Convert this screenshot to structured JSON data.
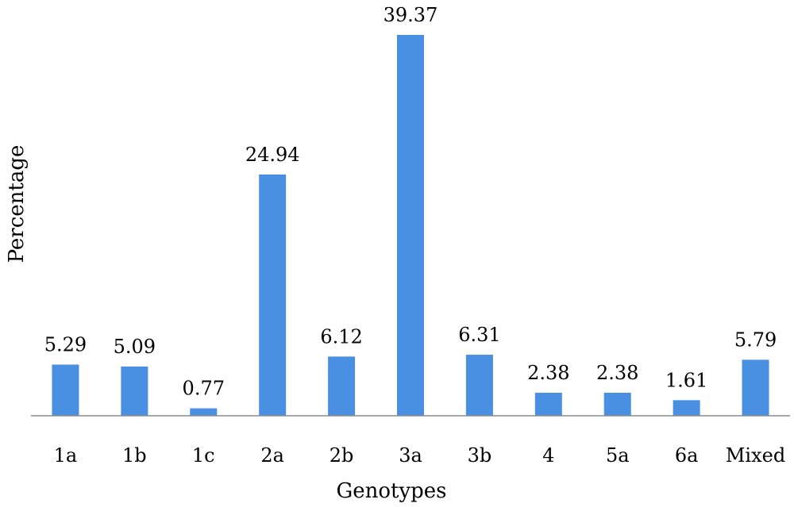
{
  "chart_data": {
    "type": "bar",
    "categories": [
      "1a",
      "1b",
      "1c",
      "2a",
      "2b",
      "3a",
      "3b",
      "4",
      "5a",
      "6a",
      "Mixed"
    ],
    "values": [
      5.29,
      5.09,
      0.77,
      24.94,
      6.12,
      39.37,
      6.31,
      2.38,
      2.38,
      1.61,
      5.79
    ],
    "value_labels": [
      "5.29",
      "5.09",
      "0.77",
      "24.94",
      "6.12",
      "39.37",
      "6.31",
      "2.38",
      "2.38",
      "1.61",
      "5.79"
    ],
    "xlabel": "Genotypes",
    "ylabel": "Percentage",
    "ylim": [
      0,
      39.37
    ],
    "grid": false,
    "bar_color": "#4a90e2"
  }
}
